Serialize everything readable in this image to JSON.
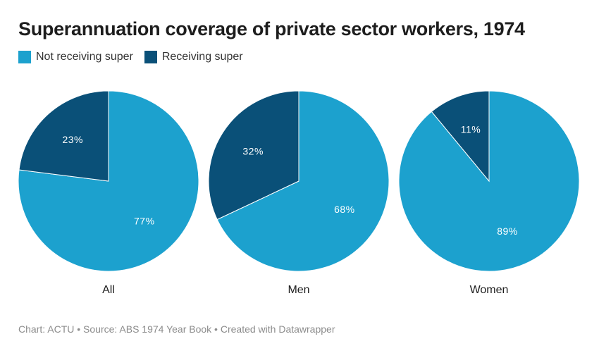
{
  "title": "Superannuation coverage of private sector workers, 1974",
  "legend": [
    {
      "label": "Not receiving super",
      "color": "#1ca1ce"
    },
    {
      "label": "Receiving super",
      "color": "#0a5078"
    }
  ],
  "chart_data": [
    {
      "type": "pie",
      "label": "All",
      "slices": [
        {
          "name": "Not receiving super",
          "value": 77,
          "text": "77%",
          "color": "#1ca1ce"
        },
        {
          "name": "Receiving super",
          "value": 23,
          "text": "23%",
          "color": "#0a5078"
        }
      ]
    },
    {
      "type": "pie",
      "label": "Men",
      "slices": [
        {
          "name": "Not receiving super",
          "value": 68,
          "text": "68%",
          "color": "#1ca1ce"
        },
        {
          "name": "Receiving super",
          "value": 32,
          "text": "32%",
          "color": "#0a5078"
        }
      ]
    },
    {
      "type": "pie",
      "label": "Women",
      "slices": [
        {
          "name": "Not receiving super",
          "value": 89,
          "text": "89%",
          "color": "#1ca1ce"
        },
        {
          "name": "Receiving super",
          "value": 11,
          "text": "11%",
          "color": "#0a5078"
        }
      ]
    }
  ],
  "footer": "Chart: ACTU • Source: ABS 1974 Year Book • Created with Datawrapper"
}
